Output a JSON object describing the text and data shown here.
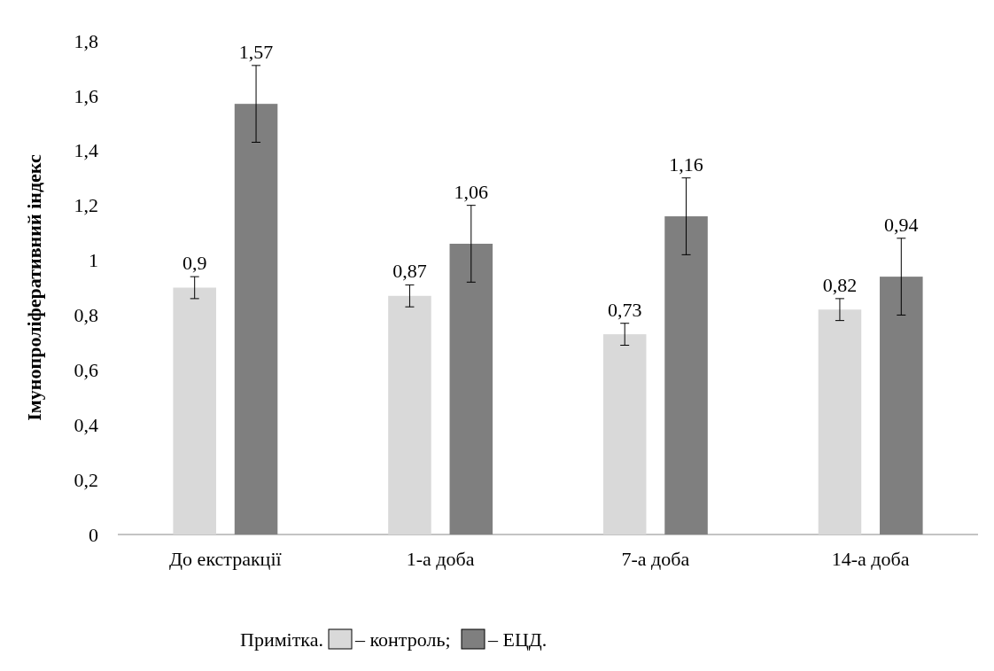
{
  "chart_data": {
    "type": "bar",
    "ylabel": "Імунопроліферативний індекс",
    "legend_title": "Примітка.",
    "categories": [
      "До екстракції",
      "1-а доба",
      "7-а доба",
      "14-а доба"
    ],
    "series": [
      {
        "name": "– контроль;",
        "color": "#d9d9d9",
        "values": [
          0.9,
          0.87,
          0.73,
          0.82
        ],
        "errors": [
          0.04,
          0.04,
          0.04,
          0.04
        ],
        "value_labels": [
          "0,9",
          "0,87",
          "0,73",
          "0,82"
        ]
      },
      {
        "name": "– ЕЦД.",
        "color": "#7f7f7f",
        "values": [
          1.57,
          1.06,
          1.16,
          0.94
        ],
        "errors": [
          0.14,
          0.14,
          0.14,
          0.14
        ],
        "value_labels": [
          "1,57",
          "1,06",
          "1,16",
          "0,94"
        ]
      }
    ],
    "ylim": [
      0,
      1.8
    ],
    "yticks": [
      0,
      {
        "value": 0.2,
        "label": "0,2"
      },
      {
        "value": 0.4,
        "label": "0,4"
      },
      {
        "value": 0.6,
        "label": "0,6"
      },
      {
        "value": 0.8,
        "label": "0,8"
      },
      1,
      {
        "value": 1.2,
        "label": "1,2"
      },
      {
        "value": 1.4,
        "label": "1,4"
      },
      {
        "value": 1.6,
        "label": "1,6"
      },
      {
        "value": 1.8,
        "label": "1,8"
      }
    ],
    "legend": "bottom"
  }
}
